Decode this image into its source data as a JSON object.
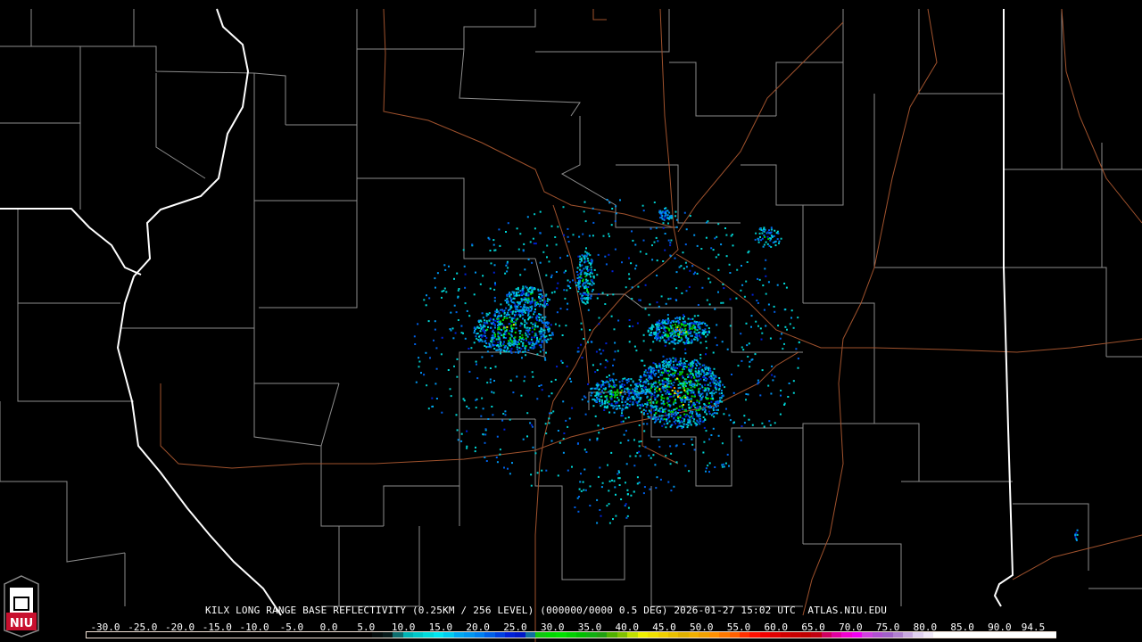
{
  "product": {
    "title": "KILX LONG RANGE BASE REFLECTIVITY (0.25KM / 256 LEVEL) (000000/0000 0.5 DEG) 2026-01-27 15:02 UTC  ATLAS.NIU.EDU"
  },
  "logo": {
    "text": "NIU",
    "color": "#c8102e"
  },
  "map_colors": {
    "state_border": "#ffffff",
    "county_border": "#8c8c8c",
    "highway": "#a0522d",
    "background": "#000000"
  },
  "colorbar": {
    "min": -30.0,
    "max": 94.5,
    "ticks": [
      "-30.0",
      "-25.0",
      "-20.0",
      "-15.0",
      "-10.0",
      "-5.0",
      "0.0",
      "5.0",
      "10.0",
      "15.0",
      "20.0",
      "25.0",
      "30.0",
      "35.0",
      "40.0",
      "45.0",
      "50.0",
      "55.0",
      "60.0",
      "65.0",
      "70.0",
      "75.0",
      "80.0",
      "85.0",
      "90.0",
      "94.5"
    ],
    "colors": [
      "#000000",
      "#000000",
      "#000000",
      "#000000",
      "#000000",
      "#000000",
      "#000000",
      "#000000",
      "#000000",
      "#000000",
      "#000000",
      "#000000",
      "#000000",
      "#000000",
      "#000000",
      "#000000",
      "#000000",
      "#000000",
      "#000000",
      "#000000",
      "#000000",
      "#000000",
      "#000000",
      "#000000",
      "#000000",
      "#000000",
      "#000000",
      "#000000",
      "#030d0d",
      "#061a1a",
      "#0d6e6e",
      "#00b4b4",
      "#00c8c8",
      "#00dada",
      "#00e6f0",
      "#00ccee",
      "#00a8f0",
      "#0096f0",
      "#0080f0",
      "#0060e8",
      "#0040e0",
      "#0020d8",
      "#0018c8",
      "#1070a0",
      "#10c810",
      "#00d800",
      "#00e000",
      "#00d000",
      "#00c000",
      "#10b010",
      "#20a010",
      "#50b000",
      "#80c000",
      "#c0e000",
      "#f0f000",
      "#f0e000",
      "#f0d000",
      "#e8c000",
      "#e0b000",
      "#f0b000",
      "#f0a000",
      "#ff9000",
      "#ff7800",
      "#ff6000",
      "#ff3000",
      "#ff1000",
      "#f00000",
      "#e00000",
      "#d00000",
      "#c80000",
      "#c00000",
      "#c00010",
      "#d00060",
      "#e000a0",
      "#f000d0",
      "#f000f0",
      "#d040e0",
      "#b050d0",
      "#a060c8",
      "#b080d0",
      "#c8a8e0",
      "#e0d0f0",
      "#f0e8f8",
      "#ffffff",
      "#ffffff",
      "#ffffff",
      "#ffffff",
      "#ffffff",
      "#ffffff",
      "#ffffff",
      "#ffffff",
      "#ffffff",
      "#ffffff",
      "#ffffff",
      "#ffffff"
    ]
  }
}
